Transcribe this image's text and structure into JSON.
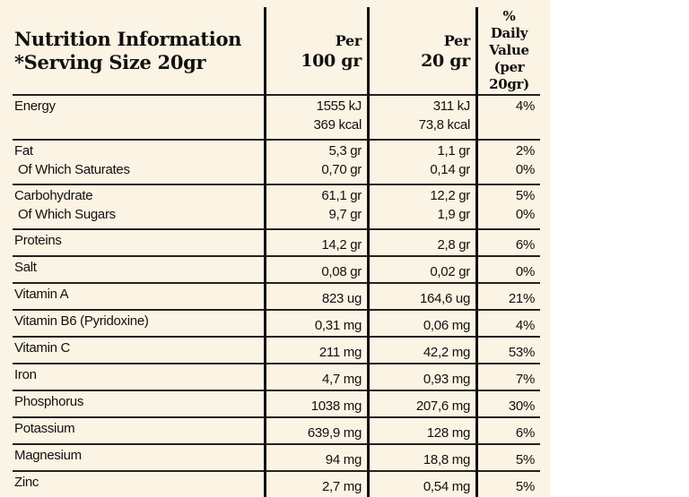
{
  "header": {
    "title": [
      "Nutrition Information",
      "*Serving Size 20gr"
    ],
    "per100": [
      "Per",
      "100 gr"
    ],
    "per20": [
      "Per",
      "20 gr"
    ],
    "daily": [
      "% Daily",
      "Value",
      "(per 20gr)"
    ]
  },
  "rows": [
    {
      "name": [
        "Energy"
      ],
      "per100": [
        "1555 kJ",
        "369 kcal"
      ],
      "per20": [
        "311 kJ",
        "73,8 kcal"
      ],
      "daily": [
        "4%"
      ]
    },
    {
      "name": [
        "Fat",
        "Of Which Saturates"
      ],
      "per100": [
        "5,3 gr",
        "0,70 gr"
      ],
      "per20": [
        "1,1 gr",
        "0,14 gr"
      ],
      "daily": [
        "2%",
        "0%"
      ]
    },
    {
      "name": [
        "Carbohydrate",
        "Of Which Sugars"
      ],
      "per100": [
        "61,1 gr",
        "9,7 gr"
      ],
      "per20": [
        "12,2 gr",
        "1,9 gr"
      ],
      "daily": [
        "5%",
        "0%"
      ]
    },
    {
      "name": [
        "Proteins"
      ],
      "per100": [
        "14,2 gr"
      ],
      "per20": [
        "2,8 gr"
      ],
      "daily": [
        "6%"
      ]
    },
    {
      "name": [
        "Salt"
      ],
      "per100": [
        "0,08 gr"
      ],
      "per20": [
        "0,02 gr"
      ],
      "daily": [
        "0%"
      ]
    },
    {
      "name": [
        "Vitamin A"
      ],
      "per100": [
        "823 ug"
      ],
      "per20": [
        "164,6 ug"
      ],
      "daily": [
        "21%"
      ]
    },
    {
      "name": [
        "Vitamin B6 (Pyridoxine)"
      ],
      "per100": [
        "0,31 mg"
      ],
      "per20": [
        "0,06 mg"
      ],
      "daily": [
        "4%"
      ]
    },
    {
      "name": [
        "Vitamin C"
      ],
      "per100": [
        "211 mg"
      ],
      "per20": [
        "42,2 mg"
      ],
      "daily": [
        "53%"
      ]
    },
    {
      "name": [
        "Iron"
      ],
      "per100": [
        "4,7 mg"
      ],
      "per20": [
        "0,93 mg"
      ],
      "daily": [
        "7%"
      ]
    },
    {
      "name": [
        "Phosphorus"
      ],
      "per100": [
        "1038 mg"
      ],
      "per20": [
        "207,6 mg"
      ],
      "daily": [
        "30%"
      ]
    },
    {
      "name": [
        "Potassium"
      ],
      "per100": [
        "639,9 mg"
      ],
      "per20": [
        "128 mg"
      ],
      "daily": [
        "6%"
      ]
    },
    {
      "name": [
        "Magnesium"
      ],
      "per100": [
        "94 mg"
      ],
      "per20": [
        "18,8 mg"
      ],
      "daily": [
        "5%"
      ]
    },
    {
      "name": [
        "Zinc"
      ],
      "per100": [
        "2,7 mg"
      ],
      "per20": [
        "0,54 mg"
      ],
      "daily": [
        "5%"
      ]
    }
  ]
}
